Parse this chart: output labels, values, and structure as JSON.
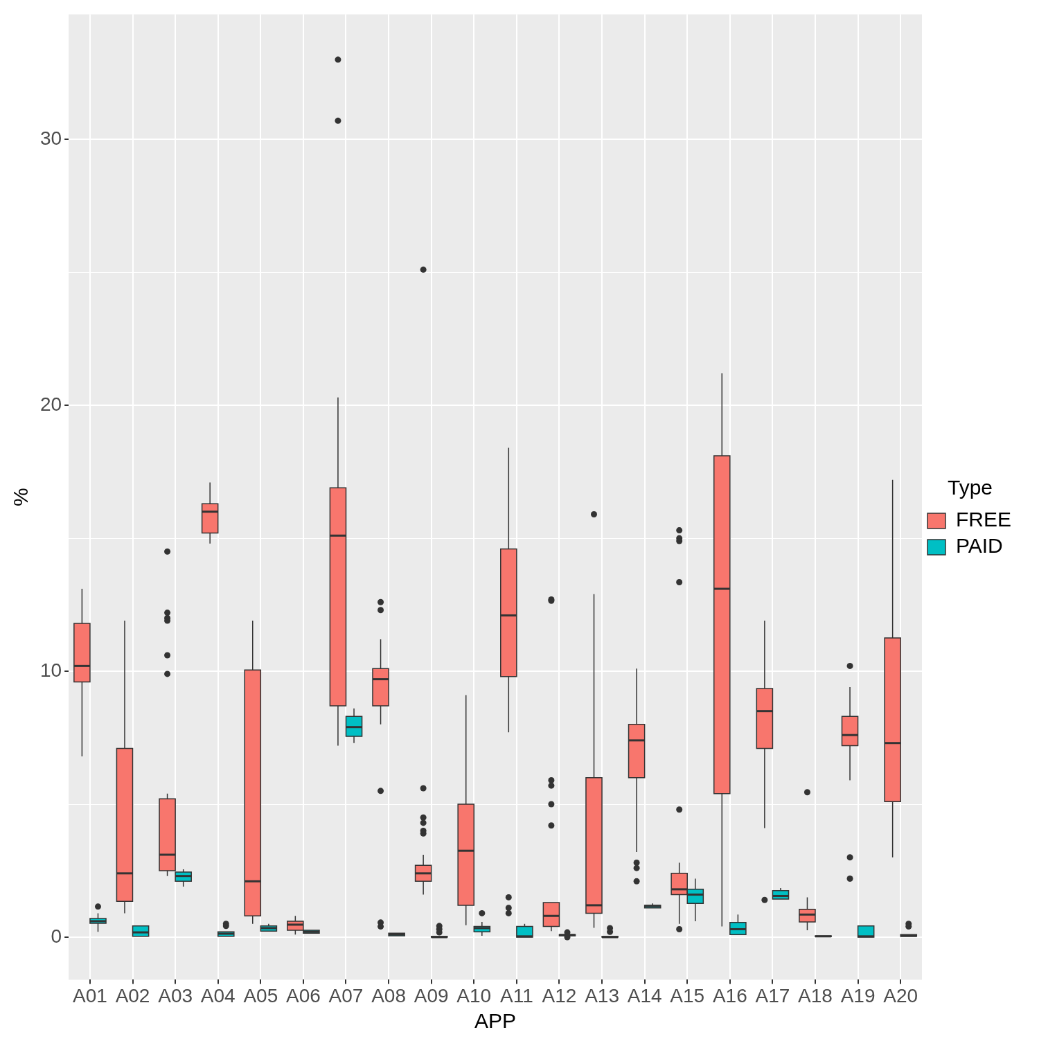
{
  "chart_data": {
    "type": "box",
    "xlabel": "APP",
    "ylabel": "%",
    "legend_title": "Type",
    "legend": "right",
    "grid": true,
    "categories": [
      "A01",
      "A02",
      "A03",
      "A04",
      "A05",
      "A06",
      "A07",
      "A08",
      "A09",
      "A10",
      "A11",
      "A12",
      "A13",
      "A14",
      "A15",
      "A16",
      "A17",
      "A18",
      "A19",
      "A20"
    ],
    "ylim": [
      -1.6,
      34.7
    ],
    "yticks": [
      0,
      {
        "value": 5,
        "label": null
      },
      10,
      {
        "value": 15,
        "label": null
      },
      20,
      {
        "value": 25,
        "label": null
      },
      30
    ],
    "series": [
      {
        "name": "FREE",
        "color": "#f8766d",
        "boxes": [
          {
            "low": 6.8,
            "q1": 9.6,
            "median": 10.2,
            "q3": 11.8,
            "high": 13.1
          },
          {
            "low": 0.9,
            "q1": 1.35,
            "median": 2.4,
            "q3": 7.1,
            "high": 11.9
          },
          {
            "low": 2.3,
            "q1": 2.5,
            "median": 3.1,
            "q3": 5.2,
            "high": 5.4,
            "outliers": [
              14.5,
              12.2,
              12.0,
              11.9,
              10.6,
              9.9
            ]
          },
          {
            "low": 14.8,
            "q1": 15.2,
            "median": 16.0,
            "q3": 16.3,
            "high": 17.1
          },
          {
            "low": 0.5,
            "q1": 0.8,
            "median": 2.1,
            "q3": 10.05,
            "high": 11.9
          },
          {
            "low": 0.1,
            "q1": 0.26,
            "median": 0.47,
            "q3": 0.6,
            "high": 0.8
          },
          {
            "low": 7.2,
            "q1": 8.7,
            "median": 15.1,
            "q3": 16.9,
            "high": 20.3,
            "outliers": [
              33.0,
              30.7
            ]
          },
          {
            "low": 8.0,
            "q1": 8.7,
            "median": 9.7,
            "q3": 10.1,
            "high": 11.2,
            "outliers": [
              12.6,
              12.3,
              5.5,
              0.55,
              0.4
            ]
          },
          {
            "low": 1.6,
            "q1": 2.1,
            "median": 2.4,
            "q3": 2.7,
            "high": 3.1,
            "outliers": [
              25.1,
              5.6,
              4.5,
              4.3,
              4.0,
              3.9
            ]
          },
          {
            "low": 0.45,
            "q1": 1.2,
            "median": 3.25,
            "q3": 5.0,
            "high": 9.1
          },
          {
            "low": 7.7,
            "q1": 9.8,
            "median": 12.1,
            "q3": 14.6,
            "high": 18.4,
            "outliers": [
              1.5,
              1.1,
              0.9
            ]
          },
          {
            "low": 0.23,
            "q1": 0.4,
            "median": 0.8,
            "q3": 1.3,
            "high": 1.35,
            "outliers": [
              12.7,
              12.65,
              5.9,
              5.7,
              5.0,
              4.2
            ]
          },
          {
            "low": 0.35,
            "q1": 0.9,
            "median": 1.2,
            "q3": 6.0,
            "high": 12.9,
            "outliers": [
              15.9
            ]
          },
          {
            "low": 3.2,
            "q1": 6.0,
            "median": 7.4,
            "q3": 8.0,
            "high": 10.1,
            "outliers": [
              2.8,
              2.6,
              2.1
            ]
          },
          {
            "low": 0.5,
            "q1": 1.6,
            "median": 1.8,
            "q3": 2.4,
            "high": 2.8,
            "outliers": [
              15.3,
              15.0,
              14.9,
              13.35,
              4.8,
              0.3
            ]
          },
          {
            "low": 0.4,
            "q1": 5.4,
            "median": 13.1,
            "q3": 18.1,
            "high": 21.2
          },
          {
            "low": 4.1,
            "q1": 7.1,
            "median": 8.5,
            "q3": 9.35,
            "high": 11.9,
            "outliers": [
              1.4
            ]
          },
          {
            "low": 0.26,
            "q1": 0.57,
            "median": 0.85,
            "q3": 1.05,
            "high": 1.5,
            "outliers": [
              5.45
            ]
          },
          {
            "low": 5.9,
            "q1": 7.2,
            "median": 7.6,
            "q3": 8.3,
            "high": 9.4,
            "outliers": [
              10.2,
              3.0,
              2.2
            ]
          },
          {
            "low": 3.0,
            "q1": 5.1,
            "median": 7.3,
            "q3": 11.25,
            "high": 17.2
          }
        ]
      },
      {
        "name": "PAID",
        "color": "#00bfc4",
        "boxes": [
          {
            "low": 0.2,
            "q1": 0.52,
            "median": 0.6,
            "q3": 0.7,
            "high": 0.9,
            "outliers": [
              1.15
            ]
          },
          {
            "low": 0.03,
            "q1": 0.03,
            "median": 0.18,
            "q3": 0.42,
            "high": 0.47
          },
          {
            "low": 1.9,
            "q1": 2.1,
            "median": 2.3,
            "q3": 2.45,
            "high": 2.55
          },
          {
            "low": 0.03,
            "q1": 0.03,
            "median": 0.13,
            "q3": 0.2,
            "high": 0.2,
            "outliers": [
              0.5,
              0.42
            ]
          },
          {
            "low": 0.2,
            "q1": 0.23,
            "median": 0.34,
            "q3": 0.42,
            "high": 0.5
          },
          {
            "low": 0.13,
            "q1": 0.15,
            "median": 0.2,
            "q3": 0.26,
            "high": 0.3
          },
          {
            "low": 7.3,
            "q1": 7.55,
            "median": 7.9,
            "q3": 8.3,
            "high": 8.6
          },
          {
            "low": 0.03,
            "q1": 0.05,
            "median": 0.1,
            "q3": 0.15,
            "high": 0.18
          },
          {
            "low": 0,
            "q1": 0,
            "median": 0,
            "q3": 0.03,
            "high": 0.05,
            "outliers": [
              0.42,
              0.3,
              0.18
            ]
          },
          {
            "low": 0.05,
            "q1": 0.2,
            "median": 0.34,
            "q3": 0.4,
            "high": 0.57,
            "outliers": [
              0.9
            ]
          },
          {
            "low": 0,
            "q1": 0,
            "median": 0.03,
            "q3": 0.4,
            "high": 0.5
          },
          {
            "low": 0.03,
            "q1": 0.05,
            "median": 0.08,
            "q3": 0.1,
            "high": 0.13,
            "outliers": [
              0.18,
              0
            ]
          },
          {
            "low": 0,
            "q1": 0,
            "median": 0,
            "q3": 0.03,
            "high": 0.03,
            "outliers": [
              0.34,
              0.2
            ]
          },
          {
            "low": 1.08,
            "q1": 1.1,
            "median": 1.17,
            "q3": 1.2,
            "high": 1.27
          },
          {
            "low": 0.6,
            "q1": 1.27,
            "median": 1.6,
            "q3": 1.8,
            "high": 2.2
          },
          {
            "low": 0.05,
            "q1": 0.1,
            "median": 0.3,
            "q3": 0.55,
            "high": 0.85
          },
          {
            "low": 1.38,
            "q1": 1.43,
            "median": 1.55,
            "q3": 1.75,
            "high": 1.85
          },
          {
            "low": 0,
            "q1": 0.02,
            "median": 0.03,
            "q3": 0.05,
            "high": 0.05
          },
          {
            "low": 0,
            "q1": 0,
            "median": 0.03,
            "q3": 0.42,
            "high": 0.47
          },
          {
            "low": 0,
            "q1": 0.03,
            "median": 0.05,
            "q3": 0.1,
            "high": 0.13,
            "outliers": [
              0.5,
              0.4
            ]
          }
        ]
      }
    ]
  }
}
